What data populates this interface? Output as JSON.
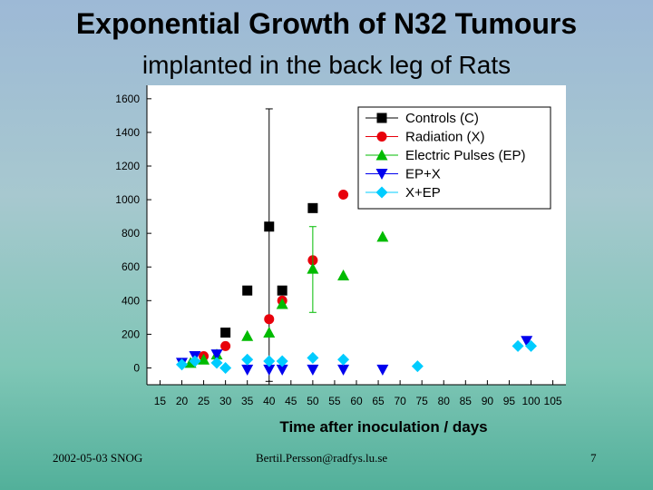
{
  "slide": {
    "title": "Exponential Growth of N32 Tumours",
    "subtitle": "implanted in the back leg of Rats",
    "footer_left": "2002-05-03 SNOG",
    "footer_center": "Bertil.Persson@radfys.lu.se",
    "page_number": "7"
  },
  "chart_data": {
    "type": "scatter",
    "xlabel": "Time after inoculation / days",
    "ylabel": "",
    "x_ticks": [
      15,
      20,
      25,
      30,
      35,
      40,
      45,
      50,
      55,
      60,
      65,
      70,
      75,
      80,
      85,
      90,
      95,
      100,
      105
    ],
    "y_ticks": [
      0,
      200,
      400,
      600,
      800,
      1000,
      1200,
      1400,
      1600
    ],
    "xlim": [
      12,
      108
    ],
    "ylim": [
      -100,
      1680
    ],
    "grid": false,
    "legend_position": "top-right",
    "series": [
      {
        "name": "Controls (C)",
        "marker": "square",
        "color": "#000000",
        "points": [
          {
            "x": 30,
            "y": 210
          },
          {
            "x": 35,
            "y": 460
          },
          {
            "x": 40,
            "y": 840
          },
          {
            "x": 43,
            "y": 460
          },
          {
            "x": 50,
            "y": 950
          }
        ],
        "error_bars": [
          {
            "x": 40,
            "low": -80,
            "high": 1540
          }
        ]
      },
      {
        "name": "Radiation (X)",
        "marker": "circle",
        "color": "#e8000b",
        "points": [
          {
            "x": 25,
            "y": 70
          },
          {
            "x": 30,
            "y": 130
          },
          {
            "x": 40,
            "y": 290
          },
          {
            "x": 43,
            "y": 400
          },
          {
            "x": 50,
            "y": 640
          },
          {
            "x": 57,
            "y": 1030
          }
        ]
      },
      {
        "name": "Electric Pulses (EP)",
        "marker": "triangle-up",
        "color": "#00bb00",
        "points": [
          {
            "x": 22,
            "y": 30
          },
          {
            "x": 25,
            "y": 50
          },
          {
            "x": 28,
            "y": 80
          },
          {
            "x": 35,
            "y": 190
          },
          {
            "x": 40,
            "y": 210
          },
          {
            "x": 43,
            "y": 380
          },
          {
            "x": 50,
            "y": 590
          },
          {
            "x": 57,
            "y": 550
          },
          {
            "x": 66,
            "y": 780
          }
        ],
        "error_bars": [
          {
            "x": 50,
            "low": 330,
            "high": 840
          }
        ]
      },
      {
        "name": "EP+X",
        "marker": "triangle-down",
        "color": "#0000ee",
        "points": [
          {
            "x": 20,
            "y": 30
          },
          {
            "x": 23,
            "y": 70
          },
          {
            "x": 28,
            "y": 80
          },
          {
            "x": 35,
            "y": -10
          },
          {
            "x": 40,
            "y": -10
          },
          {
            "x": 43,
            "y": -10
          },
          {
            "x": 50,
            "y": -10
          },
          {
            "x": 57,
            "y": -10
          },
          {
            "x": 66,
            "y": -10
          },
          {
            "x": 99,
            "y": 160
          }
        ]
      },
      {
        "name": "X+EP",
        "marker": "diamond",
        "color": "#00ccff",
        "points": [
          {
            "x": 20,
            "y": 20
          },
          {
            "x": 23,
            "y": 40
          },
          {
            "x": 28,
            "y": 30
          },
          {
            "x": 30,
            "y": 0
          },
          {
            "x": 35,
            "y": 50
          },
          {
            "x": 40,
            "y": 40
          },
          {
            "x": 43,
            "y": 40
          },
          {
            "x": 50,
            "y": 60
          },
          {
            "x": 57,
            "y": 50
          },
          {
            "x": 74,
            "y": 10
          },
          {
            "x": 97,
            "y": 130
          },
          {
            "x": 100,
            "y": 130
          }
        ]
      }
    ]
  }
}
